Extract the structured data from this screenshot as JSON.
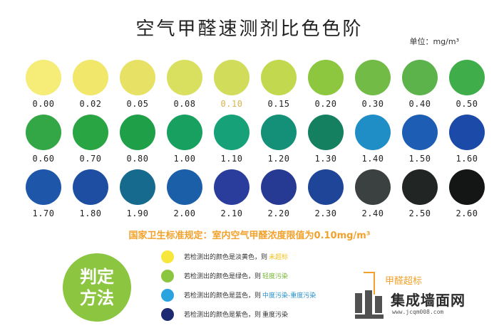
{
  "title": "空气甲醛速测剂比色色阶",
  "unit": "单位：mg/m³",
  "swatches": [
    {
      "value": "0.00",
      "color": "#f6ec78"
    },
    {
      "value": "0.02",
      "color": "#f1e76a"
    },
    {
      "value": "0.05",
      "color": "#e7e266"
    },
    {
      "value": "0.08",
      "color": "#d9df5f"
    },
    {
      "value": "0.10",
      "color": "#d1dc5a",
      "highlight": "#d8b34a"
    },
    {
      "value": "0.15",
      "color": "#c2d84f"
    },
    {
      "value": "0.20",
      "color": "#8dc63f"
    },
    {
      "value": "0.30",
      "color": "#71bb46"
    },
    {
      "value": "0.40",
      "color": "#5cb34b"
    },
    {
      "value": "0.50",
      "color": "#3fae4a"
    },
    {
      "value": "0.60",
      "color": "#33a745"
    },
    {
      "value": "0.70",
      "color": "#2aa543"
    },
    {
      "value": "0.80",
      "color": "#1fa048"
    },
    {
      "value": "1.00",
      "color": "#17a05f"
    },
    {
      "value": "1.10",
      "color": "#16a179"
    },
    {
      "value": "1.20",
      "color": "#139077"
    },
    {
      "value": "1.30",
      "color": "#14805f"
    },
    {
      "value": "1.40",
      "color": "#1f8ec7"
    },
    {
      "value": "1.50",
      "color": "#1d5db4"
    },
    {
      "value": "1.60",
      "color": "#1c4aa8"
    },
    {
      "value": "1.70",
      "color": "#1e56aa"
    },
    {
      "value": "1.80",
      "color": "#1d4ea2"
    },
    {
      "value": "1.90",
      "color": "#156a8e"
    },
    {
      "value": "2.00",
      "color": "#1a5fa8"
    },
    {
      "value": "2.10",
      "color": "#2b3d9c"
    },
    {
      "value": "2.20",
      "color": "#263a93"
    },
    {
      "value": "2.30",
      "color": "#1e4597"
    },
    {
      "value": "2.40",
      "color": "#3a4140"
    },
    {
      "value": "2.50",
      "color": "#212524"
    },
    {
      "value": "2.60",
      "color": "#141616"
    }
  ],
  "standard": "国家卫生标准规定：室内空气甲醛浓度限值为0.10mg/m³",
  "method": {
    "label_line1": "判定",
    "label_line2": "方法",
    "color": "#8cc540"
  },
  "legend": [
    {
      "color": "#f6e73a",
      "text": "若检测出的颜色是淡黄色，则",
      "result": "未超标",
      "result_color": "#f2c21e"
    },
    {
      "color": "#8cc540",
      "text": "若检测出的颜色是绿色，则",
      "result": "轻度污染",
      "result_color": "#74b832"
    },
    {
      "color": "#2ba3df",
      "text": "若检测出的颜色是蓝色，则",
      "result": "中度污染-重度污染",
      "result_color": "#2690c9"
    },
    {
      "color": "#1d2a72",
      "text": "若检测出的颜色是紫色，则",
      "result": "重度污染",
      "result_color": "#333333"
    }
  ],
  "side_label": "甲醛超标",
  "watermark": {
    "name": "集成墙面网",
    "url": "www.jcqm008.com"
  }
}
